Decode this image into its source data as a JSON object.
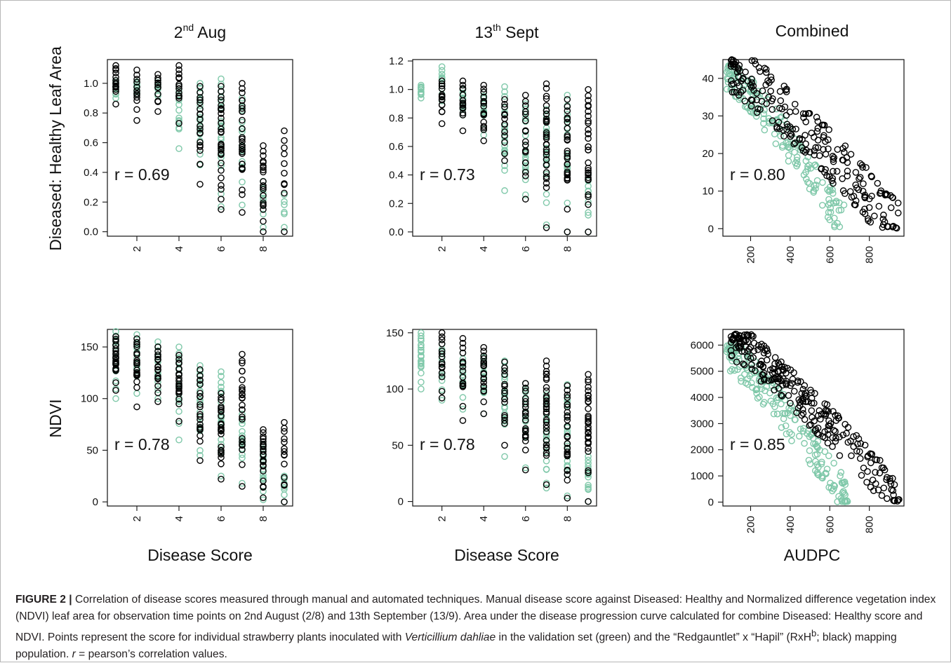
{
  "figure": {
    "column_titles": {
      "aug": {
        "base": "2",
        "sup": "nd",
        "rest": " Aug"
      },
      "sept": {
        "base": "13",
        "sup": "th",
        "rest": " Sept"
      },
      "combined": "Combined"
    },
    "row_labels": [
      "Diseased: Healthy Leaf Area",
      "NDVI"
    ],
    "x_labels": [
      "Disease Score",
      "Disease Score",
      "AUDPC"
    ],
    "colors": {
      "validation": "#7fc8a9",
      "mapping": "#000000"
    }
  },
  "caption": {
    "label": "FIGURE 2 |",
    "part1": " Correlation of disease scores measured through manual and automated techniques. Manual disease score against Diseased: Healthy and Normalized difference vegetation index (NDVI) leaf area for observation time points on 2nd August (2/8) and 13th September (13/9). Area under the disease progression curve calculated for combine Diseased: Healthy score and NDVI. Points represent the score for individual strawberry plants inoculated with ",
    "species": "Verticillium dahliae",
    "part2": " in the validation set (green) and the “Redgauntlet” x “Hapil” (RxH",
    "sup": "b",
    "part3": "; black) mapping population. ",
    "r_symbol": "r",
    "part4": " = pearson’s correlation values."
  },
  "chart_data": [
    {
      "id": "dh_aug",
      "type": "scatter",
      "title": "2nd Aug",
      "ylabel": "Diseased: Healthy Leaf Area",
      "xlabel": "",
      "annotation": "r = 0.69",
      "r": 0.69,
      "xlim": [
        0.6,
        9.4
      ],
      "ylim": [
        -0.03,
        1.16
      ],
      "xticks": [
        2,
        4,
        6,
        8
      ],
      "yticks": [
        0.0,
        0.2,
        0.4,
        0.6,
        0.8,
        1.0
      ],
      "ytick_labels": [
        "0.0",
        "0.2",
        "0.4",
        "0.6",
        "0.8",
        "1.0"
      ],
      "series": [
        {
          "name": "validation set",
          "color": "#7fc8a9",
          "columns": [
            {
              "x": 1,
              "ymin": 0.9,
              "ymax": 1.02,
              "n": 10
            },
            {
              "x": 2,
              "ymin": 0.93,
              "ymax": 1.01,
              "n": 10
            },
            {
              "x": 3,
              "ymin": 0.88,
              "ymax": 1.02,
              "n": 10
            },
            {
              "x": 4,
              "ymin": 0.56,
              "ymax": 0.98,
              "n": 12
            },
            {
              "x": 5,
              "ymin": 0.45,
              "ymax": 1.0,
              "n": 18
            },
            {
              "x": 6,
              "ymin": 0.17,
              "ymax": 1.03,
              "n": 24
            },
            {
              "x": 7,
              "ymin": 0.18,
              "ymax": 0.9,
              "n": 14
            },
            {
              "x": 8,
              "ymin": 0.03,
              "ymax": 0.34,
              "n": 8
            },
            {
              "x": 9,
              "ymin": 0.03,
              "ymax": 0.25,
              "n": 6
            }
          ]
        },
        {
          "name": "RxHb mapping population",
          "color": "#000000",
          "columns": [
            {
              "x": 1,
              "ymin": 0.86,
              "ymax": 1.12,
              "n": 14
            },
            {
              "x": 2,
              "ymin": 0.75,
              "ymax": 1.09,
              "n": 12
            },
            {
              "x": 3,
              "ymin": 0.81,
              "ymax": 1.06,
              "n": 12
            },
            {
              "x": 4,
              "ymin": 0.73,
              "ymax": 1.12,
              "n": 14
            },
            {
              "x": 5,
              "ymin": 0.32,
              "ymax": 0.98,
              "n": 20
            },
            {
              "x": 6,
              "ymin": 0.15,
              "ymax": 0.98,
              "n": 28
            },
            {
              "x": 7,
              "ymin": 0.13,
              "ymax": 1.0,
              "n": 28
            },
            {
              "x": 8,
              "ymin": 0.0,
              "ymax": 0.58,
              "n": 20
            },
            {
              "x": 9,
              "ymin": 0.0,
              "ymax": 0.68,
              "n": 10
            }
          ]
        }
      ]
    },
    {
      "id": "dh_sept",
      "type": "scatter",
      "title": "13th Sept",
      "ylabel": "",
      "xlabel": "",
      "annotation": "r = 0.73",
      "r": 0.73,
      "xlim": [
        0.6,
        9.4
      ],
      "ylim": [
        -0.03,
        1.21
      ],
      "xticks": [
        2,
        4,
        6,
        8
      ],
      "yticks": [
        0.0,
        0.2,
        0.4,
        0.6,
        0.8,
        1.0,
        1.2
      ],
      "ytick_labels": [
        "0.0",
        "0.2",
        "0.4",
        "0.6",
        "0.8",
        "1.0",
        "1.2"
      ],
      "series": [
        {
          "name": "validation set",
          "color": "#7fc8a9",
          "columns": [
            {
              "x": 1,
              "ymin": 0.94,
              "ymax": 1.03,
              "n": 10
            },
            {
              "x": 2,
              "ymin": 0.92,
              "ymax": 1.16,
              "n": 10
            },
            {
              "x": 3,
              "ymin": 0.82,
              "ymax": 1.0,
              "n": 10
            },
            {
              "x": 4,
              "ymin": 0.68,
              "ymax": 0.98,
              "n": 14
            },
            {
              "x": 5,
              "ymin": 0.29,
              "ymax": 1.02,
              "n": 18
            },
            {
              "x": 6,
              "ymin": 0.26,
              "ymax": 0.9,
              "n": 20
            },
            {
              "x": 7,
              "ymin": 0.05,
              "ymax": 0.86,
              "n": 22
            },
            {
              "x": 8,
              "ymin": 0.0,
              "ymax": 0.96,
              "n": 16
            },
            {
              "x": 9,
              "ymin": 0.0,
              "ymax": 0.4,
              "n": 10
            }
          ]
        },
        {
          "name": "RxHb mapping population",
          "color": "#000000",
          "columns": [
            {
              "x": 2,
              "ymin": 0.76,
              "ymax": 1.06,
              "n": 14
            },
            {
              "x": 3,
              "ymin": 0.71,
              "ymax": 1.06,
              "n": 14
            },
            {
              "x": 4,
              "ymin": 0.64,
              "ymax": 1.03,
              "n": 16
            },
            {
              "x": 5,
              "ymin": 0.5,
              "ymax": 0.93,
              "n": 14
            },
            {
              "x": 6,
              "ymin": 0.23,
              "ymax": 0.96,
              "n": 18
            },
            {
              "x": 7,
              "ymin": 0.03,
              "ymax": 1.04,
              "n": 30
            },
            {
              "x": 8,
              "ymin": 0.0,
              "ymax": 0.93,
              "n": 26
            },
            {
              "x": 9,
              "ymin": 0.0,
              "ymax": 1.0,
              "n": 30
            }
          ]
        }
      ]
    },
    {
      "id": "dh_combined",
      "type": "scatter",
      "title": "Combined",
      "ylabel": "",
      "xlabel": "",
      "annotation": "r = 0.80",
      "r": 0.8,
      "xlim": [
        60,
        975
      ],
      "ylim": [
        -2,
        45
      ],
      "xticks": [
        200,
        400,
        600,
        800
      ],
      "yticks": [
        0,
        10,
        20,
        30,
        40
      ],
      "ytick_labels": [
        "0",
        "10",
        "20",
        "30",
        "40"
      ],
      "series": [
        {
          "name": "validation set",
          "color": "#7fc8a9",
          "trend": {
            "x0": 80,
            "x1": 680,
            "y0": 42,
            "y1": 1,
            "spread": 5,
            "n": 160
          }
        },
        {
          "name": "RxHb mapping population",
          "color": "#000000",
          "trend": {
            "x0": 100,
            "x1": 950,
            "y0": 43,
            "y1": 0,
            "spread": 7,
            "n": 230
          }
        }
      ]
    },
    {
      "id": "ndvi_aug",
      "type": "scatter",
      "title": "",
      "ylabel": "NDVI",
      "xlabel": "Disease Score",
      "annotation": "r = 0.78",
      "r": 0.78,
      "xlim": [
        0.6,
        9.4
      ],
      "ylim": [
        -4,
        167
      ],
      "xticks": [
        2,
        4,
        6,
        8
      ],
      "yticks": [
        0,
        50,
        100,
        150
      ],
      "ytick_labels": [
        "0",
        "50",
        "100",
        "150"
      ],
      "series": [
        {
          "name": "validation set",
          "color": "#7fc8a9",
          "columns": [
            {
              "x": 1,
              "ymin": 100,
              "ymax": 165,
              "n": 18
            },
            {
              "x": 2,
              "ymin": 105,
              "ymax": 162,
              "n": 16
            },
            {
              "x": 3,
              "ymin": 100,
              "ymax": 155,
              "n": 14
            },
            {
              "x": 4,
              "ymin": 60,
              "ymax": 150,
              "n": 16
            },
            {
              "x": 5,
              "ymin": 45,
              "ymax": 132,
              "n": 20
            },
            {
              "x": 6,
              "ymin": 25,
              "ymax": 126,
              "n": 22
            },
            {
              "x": 7,
              "ymin": 18,
              "ymax": 85,
              "n": 14
            },
            {
              "x": 8,
              "ymin": 2,
              "ymax": 55,
              "n": 14
            },
            {
              "x": 9,
              "ymin": 0,
              "ymax": 25,
              "n": 8
            }
          ]
        },
        {
          "name": "RxHb mapping population",
          "color": "#000000",
          "columns": [
            {
              "x": 1,
              "ymin": 108,
              "ymax": 160,
              "n": 22
            },
            {
              "x": 2,
              "ymin": 92,
              "ymax": 158,
              "n": 20
            },
            {
              "x": 3,
              "ymin": 97,
              "ymax": 150,
              "n": 16
            },
            {
              "x": 4,
              "ymin": 78,
              "ymax": 142,
              "n": 20
            },
            {
              "x": 5,
              "ymin": 40,
              "ymax": 128,
              "n": 20
            },
            {
              "x": 6,
              "ymin": 22,
              "ymax": 105,
              "n": 24
            },
            {
              "x": 7,
              "ymin": 15,
              "ymax": 143,
              "n": 26
            },
            {
              "x": 8,
              "ymin": 4,
              "ymax": 70,
              "n": 22
            },
            {
              "x": 9,
              "ymin": 0,
              "ymax": 77,
              "n": 14
            }
          ]
        }
      ]
    },
    {
      "id": "ndvi_sept",
      "type": "scatter",
      "title": "",
      "ylabel": "",
      "xlabel": "Disease Score",
      "annotation": "r = 0.78",
      "r": 0.78,
      "xlim": [
        0.6,
        9.4
      ],
      "ylim": [
        -4,
        153
      ],
      "xticks": [
        2,
        4,
        6,
        8
      ],
      "yticks": [
        0,
        50,
        100,
        150
      ],
      "ytick_labels": [
        "0",
        "50",
        "100",
        "150"
      ],
      "series": [
        {
          "name": "validation set",
          "color": "#7fc8a9",
          "columns": [
            {
              "x": 1,
              "ymin": 100,
              "ymax": 150,
              "n": 22
            },
            {
              "x": 2,
              "ymin": 90,
              "ymax": 140,
              "n": 12
            },
            {
              "x": 3,
              "ymin": 82,
              "ymax": 132,
              "n": 12
            },
            {
              "x": 4,
              "ymin": 78,
              "ymax": 128,
              "n": 14
            },
            {
              "x": 5,
              "ymin": 40,
              "ymax": 125,
              "n": 18
            },
            {
              "x": 6,
              "ymin": 30,
              "ymax": 105,
              "n": 18
            },
            {
              "x": 7,
              "ymin": 12,
              "ymax": 95,
              "n": 22
            },
            {
              "x": 8,
              "ymin": 5,
              "ymax": 104,
              "n": 20
            },
            {
              "x": 9,
              "ymin": 0,
              "ymax": 40,
              "n": 14
            }
          ]
        },
        {
          "name": "RxHb mapping population",
          "color": "#000000",
          "columns": [
            {
              "x": 2,
              "ymin": 92,
              "ymax": 150,
              "n": 16
            },
            {
              "x": 3,
              "ymin": 72,
              "ymax": 145,
              "n": 16
            },
            {
              "x": 4,
              "ymin": 78,
              "ymax": 137,
              "n": 20
            },
            {
              "x": 5,
              "ymin": 50,
              "ymax": 124,
              "n": 16
            },
            {
              "x": 6,
              "ymin": 28,
              "ymax": 105,
              "n": 20
            },
            {
              "x": 7,
              "ymin": 15,
              "ymax": 125,
              "n": 30
            },
            {
              "x": 8,
              "ymin": 3,
              "ymax": 103,
              "n": 28
            },
            {
              "x": 9,
              "ymin": 0,
              "ymax": 113,
              "n": 32
            }
          ]
        }
      ]
    },
    {
      "id": "ndvi_combined",
      "type": "scatter",
      "title": "",
      "ylabel": "",
      "xlabel": "AUDPC",
      "annotation": "r = 0.85",
      "r": 0.85,
      "xlim": [
        60,
        975
      ],
      "ylim": [
        -150,
        6600
      ],
      "xticks": [
        200,
        400,
        600,
        800
      ],
      "yticks": [
        0,
        1000,
        2000,
        3000,
        4000,
        5000,
        6000
      ],
      "ytick_labels": [
        "0",
        "1000",
        "2000",
        "3000",
        "4000",
        "5000",
        "6000"
      ],
      "series": [
        {
          "name": "validation set",
          "color": "#7fc8a9",
          "trend": {
            "x0": 80,
            "x1": 690,
            "y0": 5800,
            "y1": 150,
            "spread": 700,
            "n": 200
          }
        },
        {
          "name": "RxHb mapping population",
          "color": "#000000",
          "trend": {
            "x0": 100,
            "x1": 950,
            "y0": 6200,
            "y1": 100,
            "spread": 750,
            "n": 260
          }
        }
      ]
    }
  ]
}
